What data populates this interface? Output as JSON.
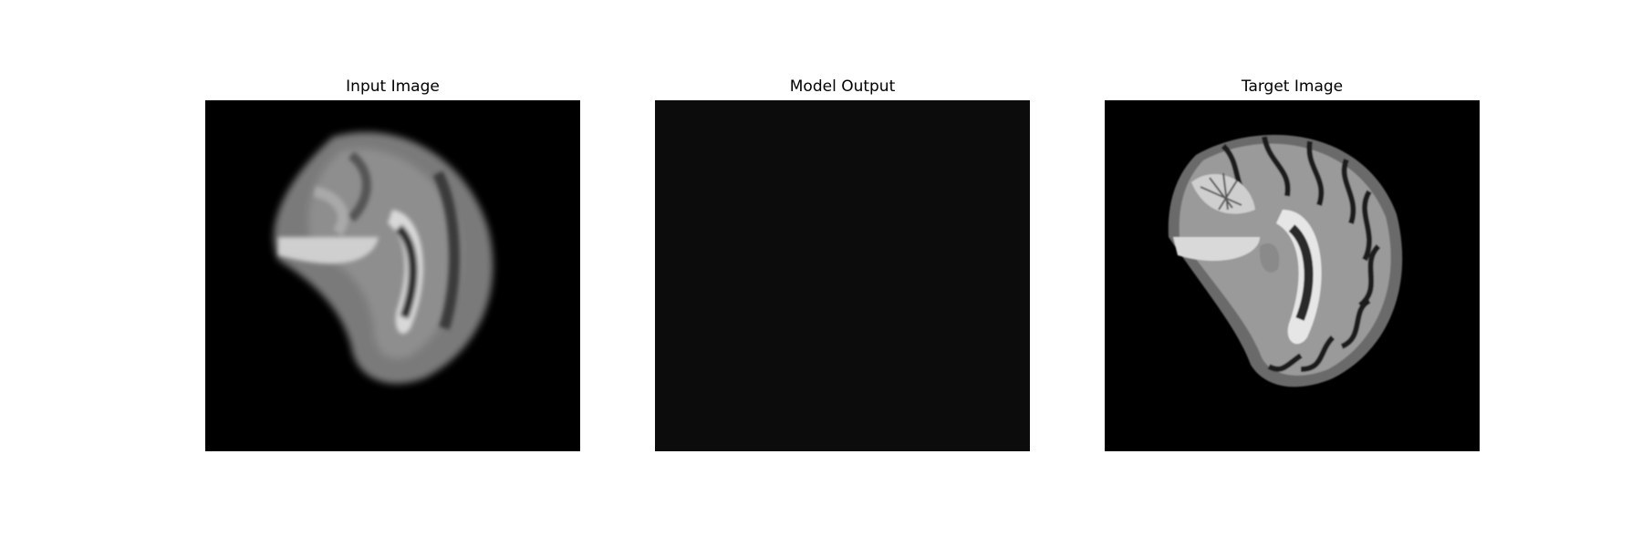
{
  "figure": {
    "panels": [
      {
        "title": "Input Image"
      },
      {
        "title": "Model Output"
      },
      {
        "title": "Target Image"
      }
    ]
  }
}
